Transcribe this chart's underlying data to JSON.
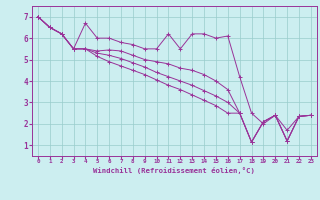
{
  "title": "",
  "xlabel": "Windchill (Refroidissement éolien,°C)",
  "background_color": "#cceef0",
  "line_color": "#993399",
  "grid_color": "#99cccc",
  "xlim": [
    -0.5,
    23.5
  ],
  "ylim": [
    0.5,
    7.5
  ],
  "yticks": [
    1,
    2,
    3,
    4,
    5,
    6,
    7
  ],
  "xticks": [
    0,
    1,
    2,
    3,
    4,
    5,
    6,
    7,
    8,
    9,
    10,
    11,
    12,
    13,
    14,
    15,
    16,
    17,
    18,
    19,
    20,
    21,
    22,
    23
  ],
  "lines": [
    {
      "x": [
        0,
        1,
        2,
        3,
        4,
        5,
        6,
        7,
        8,
        9,
        10,
        11,
        12,
        13,
        14,
        15,
        16,
        17,
        18,
        19,
        20,
        21,
        22,
        23
      ],
      "y": [
        7.0,
        6.5,
        6.2,
        5.5,
        6.7,
        6.0,
        6.0,
        5.8,
        5.7,
        5.5,
        5.5,
        6.2,
        5.5,
        6.2,
        6.2,
        6.0,
        6.1,
        4.2,
        2.5,
        2.0,
        2.4,
        1.7,
        2.35,
        2.4
      ]
    },
    {
      "x": [
        0,
        1,
        2,
        3,
        4,
        5,
        6,
        7,
        8,
        9,
        10,
        11,
        12,
        13,
        14,
        15,
        16,
        17,
        18,
        19,
        20,
        21,
        22,
        23
      ],
      "y": [
        7.0,
        6.5,
        6.2,
        5.5,
        5.5,
        5.4,
        5.45,
        5.4,
        5.2,
        5.0,
        4.9,
        4.8,
        4.6,
        4.5,
        4.3,
        4.0,
        3.6,
        2.5,
        1.15,
        2.1,
        2.4,
        1.2,
        2.35,
        2.4
      ]
    },
    {
      "x": [
        0,
        1,
        2,
        3,
        4,
        5,
        6,
        7,
        8,
        9,
        10,
        11,
        12,
        13,
        14,
        15,
        16,
        17,
        18,
        19,
        20,
        21,
        22,
        23
      ],
      "y": [
        7.0,
        6.5,
        6.2,
        5.5,
        5.5,
        5.3,
        5.2,
        5.05,
        4.85,
        4.65,
        4.4,
        4.2,
        4.0,
        3.8,
        3.55,
        3.3,
        3.0,
        2.5,
        1.15,
        2.1,
        2.4,
        1.2,
        2.35,
        2.4
      ]
    },
    {
      "x": [
        0,
        1,
        2,
        3,
        4,
        5,
        6,
        7,
        8,
        9,
        10,
        11,
        12,
        13,
        14,
        15,
        16,
        17,
        18,
        19,
        20,
        21,
        22,
        23
      ],
      "y": [
        7.0,
        6.5,
        6.2,
        5.5,
        5.5,
        5.15,
        4.9,
        4.7,
        4.5,
        4.3,
        4.05,
        3.8,
        3.6,
        3.35,
        3.1,
        2.85,
        2.5,
        2.5,
        1.15,
        2.1,
        2.4,
        1.2,
        2.35,
        2.4
      ]
    }
  ]
}
